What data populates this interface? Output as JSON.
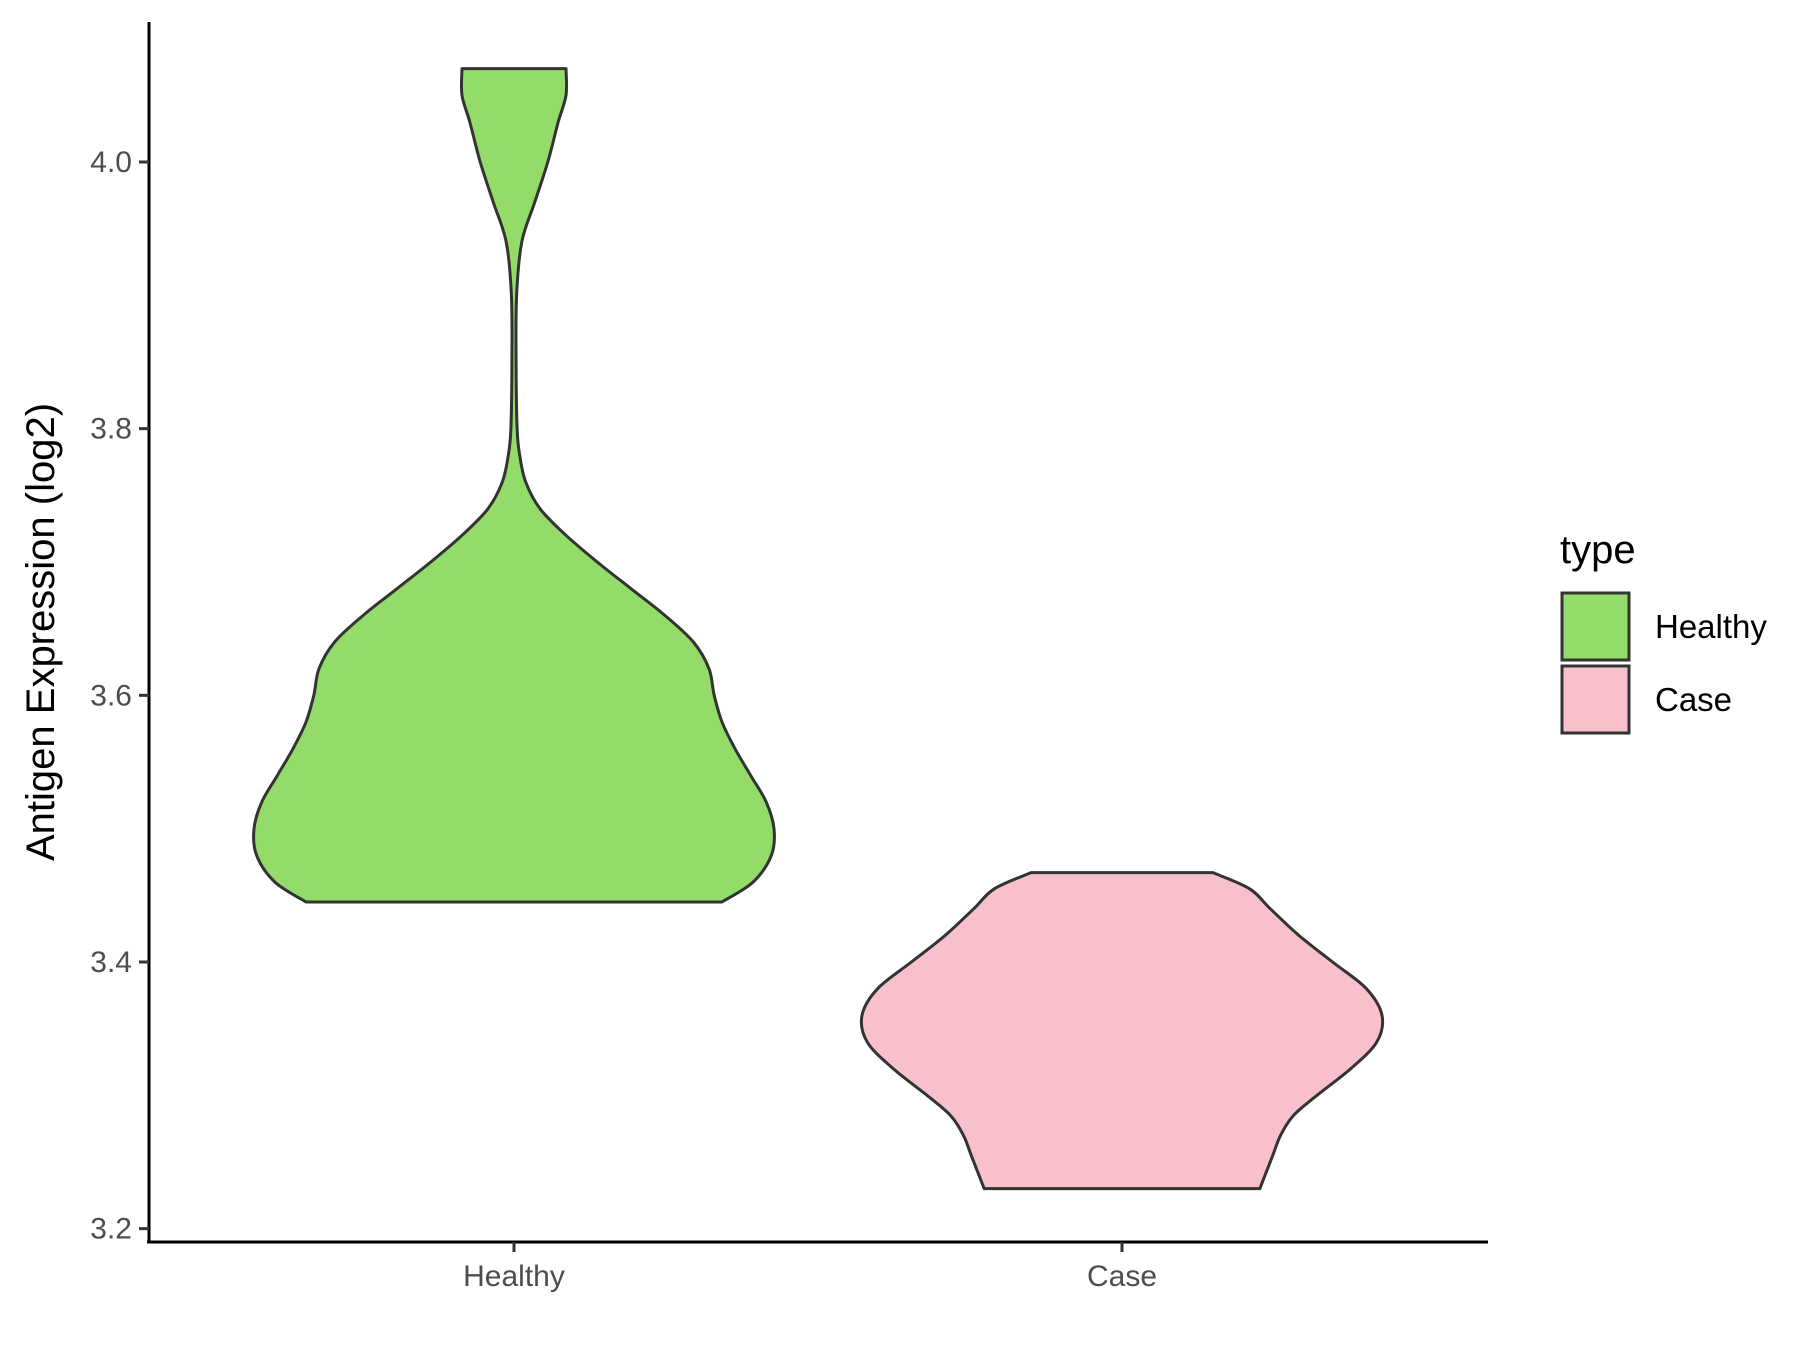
{
  "chart_data": {
    "type": "violin",
    "title": "",
    "xlabel": "",
    "ylabel": "Antigen Expression (log2)",
    "ylim": [
      3.19,
      4.105
    ],
    "yticks": [
      "3.2",
      "3.4",
      "3.6",
      "3.8",
      "4.0"
    ],
    "categories": [
      "Healthy",
      "Case"
    ],
    "grid": false,
    "legend": {
      "title": "type",
      "position": "right",
      "entries": [
        {
          "label": "Healthy",
          "color": "#93DC6A"
        },
        {
          "label": "Case",
          "color": "#F8C0CB"
        }
      ]
    },
    "series": [
      {
        "category": "Healthy",
        "color": "#93DC6A",
        "min": 3.445,
        "max": 4.07,
        "density_profile": [
          [
            3.445,
            0.8
          ],
          [
            3.46,
            0.92
          ],
          [
            3.48,
            0.99
          ],
          [
            3.5,
            1.0
          ],
          [
            3.52,
            0.97
          ],
          [
            3.54,
            0.91
          ],
          [
            3.56,
            0.85
          ],
          [
            3.58,
            0.8
          ],
          [
            3.6,
            0.77
          ],
          [
            3.62,
            0.75
          ],
          [
            3.64,
            0.69
          ],
          [
            3.66,
            0.58
          ],
          [
            3.68,
            0.45
          ],
          [
            3.7,
            0.32
          ],
          [
            3.72,
            0.2
          ],
          [
            3.74,
            0.1
          ],
          [
            3.76,
            0.045
          ],
          [
            3.78,
            0.022
          ],
          [
            3.8,
            0.012
          ],
          [
            3.85,
            0.008
          ],
          [
            3.9,
            0.01
          ],
          [
            3.94,
            0.03
          ],
          [
            3.97,
            0.08
          ],
          [
            4.0,
            0.13
          ],
          [
            4.03,
            0.17
          ],
          [
            4.05,
            0.2
          ],
          [
            4.07,
            0.2
          ]
        ]
      },
      {
        "category": "Case",
        "color": "#F8C0CB",
        "min": 3.23,
        "max": 3.467,
        "density_profile": [
          [
            3.23,
            0.53
          ],
          [
            3.24,
            0.55
          ],
          [
            3.255,
            0.58
          ],
          [
            3.27,
            0.61
          ],
          [
            3.285,
            0.66
          ],
          [
            3.3,
            0.75
          ],
          [
            3.32,
            0.88
          ],
          [
            3.34,
            0.98
          ],
          [
            3.36,
            1.0
          ],
          [
            3.38,
            0.94
          ],
          [
            3.4,
            0.81
          ],
          [
            3.42,
            0.68
          ],
          [
            3.44,
            0.57
          ],
          [
            3.455,
            0.49
          ],
          [
            3.467,
            0.35
          ]
        ]
      }
    ]
  }
}
